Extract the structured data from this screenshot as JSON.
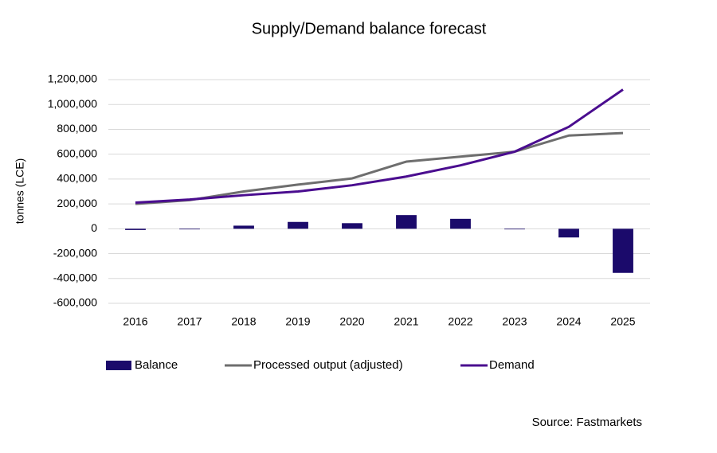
{
  "chart_data": {
    "type": "combo",
    "title": "Supply/Demand balance forecast",
    "y_label": "tonnes (LCE)",
    "source": "Source: Fastmarkets",
    "categories": [
      "2016",
      "2017",
      "2018",
      "2019",
      "2020",
      "2021",
      "2022",
      "2023",
      "2024",
      "2025"
    ],
    "series": [
      {
        "name": "Balance",
        "type": "bar",
        "color": "#1b0a6b",
        "values": [
          -10000,
          -5000,
          25000,
          55000,
          45000,
          110000,
          80000,
          -5000,
          -70000,
          -355000
        ]
      },
      {
        "name": "Processed output (adjusted)",
        "type": "line",
        "color": "#6e6e6e",
        "values": [
          200000,
          230000,
          300000,
          355000,
          405000,
          540000,
          580000,
          620000,
          750000,
          770000
        ]
      },
      {
        "name": "Demand",
        "type": "line",
        "color": "#4a0d8f",
        "values": [
          210000,
          235000,
          270000,
          300000,
          350000,
          420000,
          510000,
          620000,
          820000,
          1120000
        ]
      }
    ],
    "ylim": [
      -600000,
      1200000
    ],
    "yticks": [
      {
        "value": -600000,
        "label": "-600,000"
      },
      {
        "value": -400000,
        "label": "-400,000"
      },
      {
        "value": -200000,
        "label": "-200,000"
      },
      0,
      {
        "value": 200000,
        "label": "200,000"
      },
      {
        "value": 400000,
        "label": "400,000"
      },
      {
        "value": 600000,
        "label": "600,000"
      },
      {
        "value": 800000,
        "label": "800,000"
      },
      {
        "value": 1000000,
        "label": "1,000,000"
      },
      {
        "value": 1200000,
        "label": "1,200,000"
      }
    ],
    "grid": true,
    "legend": "bottom"
  }
}
